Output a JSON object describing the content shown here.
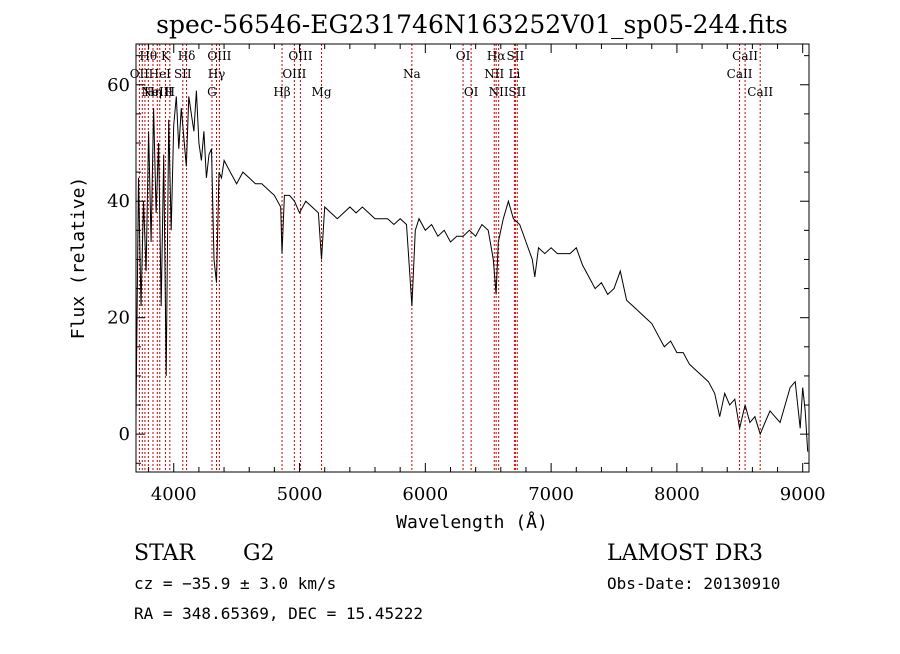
{
  "chart_data": {
    "type": "line",
    "title": "spec-56546-EG231746N163252V01_sp05-244.fits",
    "xlabel": "Wavelength (Å)",
    "ylabel": "Flux (relative)",
    "xlim": [
      3700,
      9050
    ],
    "ylim": [
      -6.5,
      67
    ],
    "xticks": [
      4000,
      5000,
      6000,
      7000,
      8000,
      9000
    ],
    "yticks": [
      0,
      20,
      40,
      60
    ],
    "grid": false,
    "series": [
      {
        "x": [
          3700,
          3720,
          3740,
          3760,
          3780,
          3800,
          3820,
          3840,
          3860,
          3880,
          3900,
          3920,
          3940,
          3960,
          3980,
          4000,
          4020,
          4040,
          4060,
          4080,
          4100,
          4120,
          4140,
          4160,
          4180,
          4200,
          4220,
          4240,
          4260,
          4280,
          4300,
          4320,
          4340,
          4360,
          4380,
          4400,
          4450,
          4500,
          4550,
          4600,
          4650,
          4700,
          4750,
          4800,
          4850,
          4861,
          4880,
          4920,
          4960,
          5000,
          5050,
          5100,
          5150,
          5175,
          5200,
          5250,
          5300,
          5350,
          5400,
          5450,
          5500,
          5550,
          5600,
          5650,
          5700,
          5750,
          5800,
          5850,
          5893,
          5920,
          5950,
          6000,
          6050,
          6100,
          6150,
          6200,
          6250,
          6300,
          6350,
          6400,
          6450,
          6500,
          6540,
          6563,
          6580,
          6620,
          6660,
          6700,
          6750,
          6800,
          6850,
          6870,
          6900,
          6950,
          7000,
          7050,
          7100,
          7150,
          7200,
          7250,
          7300,
          7350,
          7400,
          7450,
          7500,
          7550,
          7600,
          7650,
          7700,
          7750,
          7800,
          7850,
          7900,
          7950,
          8000,
          8050,
          8100,
          8150,
          8200,
          8250,
          8300,
          8340,
          8380,
          8420,
          8460,
          8498,
          8520,
          8542,
          8580,
          8620,
          8662,
          8700,
          8740,
          8780,
          8820,
          8860,
          8900,
          8940,
          8960,
          8980,
          9000,
          9020,
          9040
        ],
        "y": [
          3,
          44,
          22,
          40,
          28,
          52,
          33,
          56,
          38,
          50,
          22,
          48,
          10,
          54,
          35,
          53,
          58,
          49,
          56,
          51,
          46,
          58,
          55,
          52,
          59,
          50,
          47,
          52,
          44,
          48,
          49,
          30,
          26,
          45,
          44,
          47,
          45,
          43,
          45,
          44,
          43,
          43,
          42,
          41,
          39,
          31,
          41,
          41,
          40,
          38,
          40,
          39,
          38,
          30,
          39,
          38,
          37,
          38,
          39,
          38,
          39,
          38,
          37,
          37,
          37,
          36,
          37,
          36,
          22,
          35,
          37,
          35,
          36,
          34,
          35,
          33,
          34,
          34,
          35,
          34,
          36,
          35,
          30,
          24,
          33,
          37,
          40,
          37,
          36,
          33,
          30,
          27,
          32,
          31,
          32,
          31,
          31,
          31,
          32,
          29,
          27,
          25,
          26,
          24,
          25,
          28,
          23,
          22,
          21,
          20,
          19,
          17,
          15,
          16,
          14,
          14,
          12,
          11,
          10,
          9,
          7,
          3,
          7,
          5,
          6,
          1,
          3,
          5,
          2,
          3,
          0,
          2,
          4,
          3,
          2,
          5,
          8,
          9,
          5,
          1,
          8,
          4,
          -3
        ]
      }
    ],
    "lines": [
      {
        "wl": 3727,
        "label": "OII",
        "row": 1
      },
      {
        "wl": 3750,
        "label": "",
        "row": 0
      },
      {
        "wl": 3771,
        "label": "",
        "row": 0
      },
      {
        "wl": 3798,
        "label": "Hθ",
        "row": 0
      },
      {
        "wl": 3835,
        "label": "Hη",
        "row": 2
      },
      {
        "wl": 3869,
        "label": "NeIII",
        "row": 2
      },
      {
        "wl": 3889,
        "label": "HeI",
        "row": 1
      },
      {
        "wl": 3934,
        "label": "K",
        "row": 0
      },
      {
        "wl": 3969,
        "label": "H",
        "row": 2
      },
      {
        "wl": 4072,
        "label": "SII",
        "row": 1
      },
      {
        "wl": 4102,
        "label": "Hδ",
        "row": 0
      },
      {
        "wl": 4304,
        "label": "G",
        "row": 2
      },
      {
        "wl": 4340,
        "label": "Hγ",
        "row": 1
      },
      {
        "wl": 4363,
        "label": "OIII",
        "row": 0
      },
      {
        "wl": 4861,
        "label": "Hβ",
        "row": 2
      },
      {
        "wl": 4959,
        "label": "OIII",
        "row": 1
      },
      {
        "wl": 5007,
        "label": "OIII",
        "row": 0
      },
      {
        "wl": 5175,
        "label": "Mg",
        "row": 2
      },
      {
        "wl": 5893,
        "label": "Na",
        "row": 1
      },
      {
        "wl": 6300,
        "label": "OI",
        "row": 0
      },
      {
        "wl": 6364,
        "label": "OI",
        "row": 2
      },
      {
        "wl": 6548,
        "label": "NII",
        "row": 1
      },
      {
        "wl": 6563,
        "label": "Hα",
        "row": 0
      },
      {
        "wl": 6583,
        "label": "NII",
        "row": 2
      },
      {
        "wl": 6708,
        "label": "Li",
        "row": 1
      },
      {
        "wl": 6716,
        "label": "SII",
        "row": 0
      },
      {
        "wl": 6731,
        "label": "SII",
        "row": 2
      },
      {
        "wl": 8498,
        "label": "CaII",
        "row": 1
      },
      {
        "wl": 8542,
        "label": "CaII",
        "row": 0
      },
      {
        "wl": 8662,
        "label": "CaII",
        "row": 2
      }
    ]
  },
  "info": {
    "class": "STAR",
    "subclass": "G2",
    "survey": "LAMOST DR3",
    "cz": "cz = −35.9 ± 3.0 km/s",
    "obs_date": "Obs-Date: 20130910",
    "radec": "RA = 348.65369, DEC =  15.45222"
  }
}
